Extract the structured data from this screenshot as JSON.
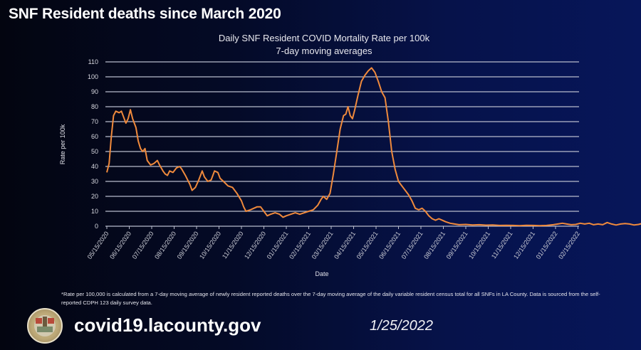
{
  "slide": {
    "title": "SNF Resident deaths since March 2020",
    "footnote": "*Rate per 100,000 is calculated from a 7-day moving average of newly resident reported deaths over the 7-day moving average of the daily variable resident census total for all SNFs in LA County.  Data is sourced from the self-reported CDPH 123 daily survey data.",
    "website": "covid19.lacounty.gov",
    "date": "1/25/2022",
    "logo_icon": "la-county-seal-icon"
  },
  "chart_data": {
    "type": "line",
    "title": "Daily SNF Resident COVID Mortality Rate per 100k",
    "subtitle": "7-day moving averages",
    "xlabel": "Date",
    "ylabel": "Rate per 100k",
    "ylim": [
      0,
      110
    ],
    "yticks": [
      0,
      10,
      20,
      30,
      40,
      50,
      60,
      70,
      80,
      90,
      100,
      110
    ],
    "grid": true,
    "legend": "none",
    "line_color": "#f08a3c",
    "xticks": [
      "05/15/2020",
      "06/15/2020",
      "07/15/2020",
      "08/15/2020",
      "09/15/2020",
      "10/15/2020",
      "11/15/2020",
      "12/15/2020",
      "01/15/2021",
      "02/15/2021",
      "03/15/2021",
      "04/15/2021",
      "05/15/2021",
      "06/15/2021",
      "07/15/2021",
      "08/15/2021",
      "09/15/2021",
      "10/15/2021",
      "11/15/2021",
      "12/15/2021",
      "01/15/2022",
      "02/15/2022"
    ],
    "x_unit": "months since 05/15/2020",
    "series": [
      {
        "name": "7-day moving average rate per 100k",
        "points": [
          [
            0,
            36
          ],
          [
            0.1,
            42
          ],
          [
            0.2,
            60
          ],
          [
            0.3,
            74
          ],
          [
            0.4,
            77
          ],
          [
            0.55,
            76
          ],
          [
            0.65,
            77
          ],
          [
            0.75,
            73
          ],
          [
            0.85,
            69
          ],
          [
            0.95,
            72
          ],
          [
            1.05,
            78
          ],
          [
            1.15,
            72
          ],
          [
            1.3,
            66
          ],
          [
            1.4,
            57
          ],
          [
            1.5,
            52
          ],
          [
            1.6,
            50
          ],
          [
            1.7,
            52
          ],
          [
            1.8,
            44
          ],
          [
            1.95,
            41
          ],
          [
            2.1,
            42
          ],
          [
            2.25,
            44
          ],
          [
            2.35,
            41
          ],
          [
            2.5,
            37
          ],
          [
            2.6,
            35
          ],
          [
            2.7,
            34
          ],
          [
            2.8,
            37
          ],
          [
            2.95,
            36
          ],
          [
            3.1,
            39
          ],
          [
            3.25,
            40
          ],
          [
            3.35,
            38
          ],
          [
            3.5,
            34
          ],
          [
            3.7,
            28
          ],
          [
            3.8,
            24
          ],
          [
            3.95,
            26
          ],
          [
            4.1,
            31
          ],
          [
            4.25,
            37
          ],
          [
            4.35,
            33
          ],
          [
            4.5,
            30
          ],
          [
            4.65,
            31
          ],
          [
            4.8,
            37
          ],
          [
            4.95,
            36
          ],
          [
            5.05,
            32
          ],
          [
            5.2,
            30
          ],
          [
            5.4,
            27
          ],
          [
            5.6,
            26
          ],
          [
            5.8,
            22
          ],
          [
            6.0,
            17
          ],
          [
            6.1,
            13
          ],
          [
            6.2,
            10
          ],
          [
            6.4,
            11
          ],
          [
            6.55,
            12
          ],
          [
            6.7,
            13
          ],
          [
            6.85,
            13
          ],
          [
            7.0,
            10
          ],
          [
            7.15,
            7
          ],
          [
            7.3,
            8
          ],
          [
            7.5,
            9
          ],
          [
            7.7,
            8
          ],
          [
            7.85,
            6
          ],
          [
            8.0,
            7
          ],
          [
            8.2,
            8
          ],
          [
            8.4,
            9
          ],
          [
            8.6,
            8
          ],
          [
            8.8,
            9
          ],
          [
            9.0,
            10
          ],
          [
            9.2,
            11
          ],
          [
            9.4,
            14
          ],
          [
            9.55,
            18
          ],
          [
            9.65,
            20
          ],
          [
            9.8,
            18
          ],
          [
            9.95,
            22
          ],
          [
            10.1,
            35
          ],
          [
            10.25,
            50
          ],
          [
            10.4,
            65
          ],
          [
            10.55,
            74
          ],
          [
            10.65,
            75
          ],
          [
            10.75,
            80
          ],
          [
            10.85,
            74
          ],
          [
            10.95,
            72
          ],
          [
            11.05,
            78
          ],
          [
            11.2,
            88
          ],
          [
            11.35,
            97
          ],
          [
            11.5,
            101
          ],
          [
            11.65,
            104
          ],
          [
            11.8,
            106
          ],
          [
            11.95,
            103
          ],
          [
            12.1,
            97
          ],
          [
            12.25,
            90
          ],
          [
            12.4,
            86
          ],
          [
            12.55,
            70
          ],
          [
            12.7,
            50
          ],
          [
            12.85,
            38
          ],
          [
            13.0,
            30
          ],
          [
            13.15,
            27
          ],
          [
            13.3,
            24
          ],
          [
            13.45,
            21
          ],
          [
            13.6,
            17
          ],
          [
            13.75,
            12
          ],
          [
            13.9,
            11
          ],
          [
            14.05,
            12
          ],
          [
            14.2,
            10
          ],
          [
            14.35,
            7
          ],
          [
            14.5,
            5
          ],
          [
            14.65,
            4
          ],
          [
            14.8,
            5
          ],
          [
            14.95,
            4
          ],
          [
            15.1,
            3
          ],
          [
            15.3,
            2
          ],
          [
            15.5,
            1.5
          ],
          [
            15.7,
            1
          ],
          [
            16.0,
            1.2
          ],
          [
            16.3,
            0.8
          ],
          [
            16.6,
            1
          ],
          [
            16.9,
            0.7
          ],
          [
            17.2,
            0.8
          ],
          [
            17.5,
            0.5
          ],
          [
            17.8,
            0.6
          ],
          [
            18.1,
            0.5
          ],
          [
            18.4,
            0.4
          ],
          [
            18.7,
            0.6
          ],
          [
            19.0,
            0.5
          ],
          [
            19.3,
            0.4
          ],
          [
            19.6,
            0.5
          ],
          [
            19.9,
            1
          ],
          [
            20.1,
            1.5
          ],
          [
            20.3,
            2
          ],
          [
            20.5,
            1.5
          ],
          [
            20.7,
            1
          ],
          [
            20.9,
            1.2
          ],
          [
            21.1,
            2
          ],
          [
            21.3,
            1.5
          ],
          [
            21.5,
            2
          ],
          [
            21.7,
            1
          ],
          [
            21.9,
            1.5
          ],
          [
            22.1,
            1
          ],
          [
            22.3,
            2.5
          ],
          [
            22.5,
            1.5
          ],
          [
            22.7,
            0.8
          ],
          [
            22.9,
            1.5
          ],
          [
            23.1,
            1.8
          ],
          [
            23.3,
            1.5
          ],
          [
            23.5,
            0.8
          ],
          [
            23.7,
            1.2
          ],
          [
            23.9,
            2
          ],
          [
            24.1,
            2.3
          ],
          [
            24.3,
            1.5
          ],
          [
            24.5,
            1
          ],
          [
            24.7,
            1.2
          ],
          [
            24.9,
            0.8
          ],
          [
            25.1,
            1.2
          ],
          [
            25.3,
            1
          ],
          [
            25.5,
            1.5
          ],
          [
            25.7,
            1.2
          ],
          [
            25.9,
            2
          ],
          [
            26.1,
            1.5
          ],
          [
            26.3,
            1.2
          ],
          [
            26.5,
            1.8
          ],
          [
            26.7,
            1.5
          ],
          [
            26.9,
            2
          ],
          [
            27.1,
            1.5
          ],
          [
            27.3,
            2.5
          ],
          [
            27.5,
            1.8
          ],
          [
            27.7,
            2
          ],
          [
            27.9,
            1
          ],
          [
            28.1,
            0.8
          ],
          [
            28.3,
            0.6
          ],
          [
            28.5,
            0.5
          ],
          [
            28.7,
            1
          ],
          [
            28.9,
            2
          ],
          [
            29.05,
            3
          ],
          [
            29.2,
            5
          ],
          [
            29.35,
            8
          ],
          [
            29.5,
            11
          ],
          [
            29.65,
            14
          ],
          [
            29.8,
            17
          ],
          [
            29.9,
            21
          ],
          [
            30.0,
            18
          ],
          [
            30.05,
            19
          ],
          [
            30.1,
            17
          ]
        ]
      }
    ]
  }
}
